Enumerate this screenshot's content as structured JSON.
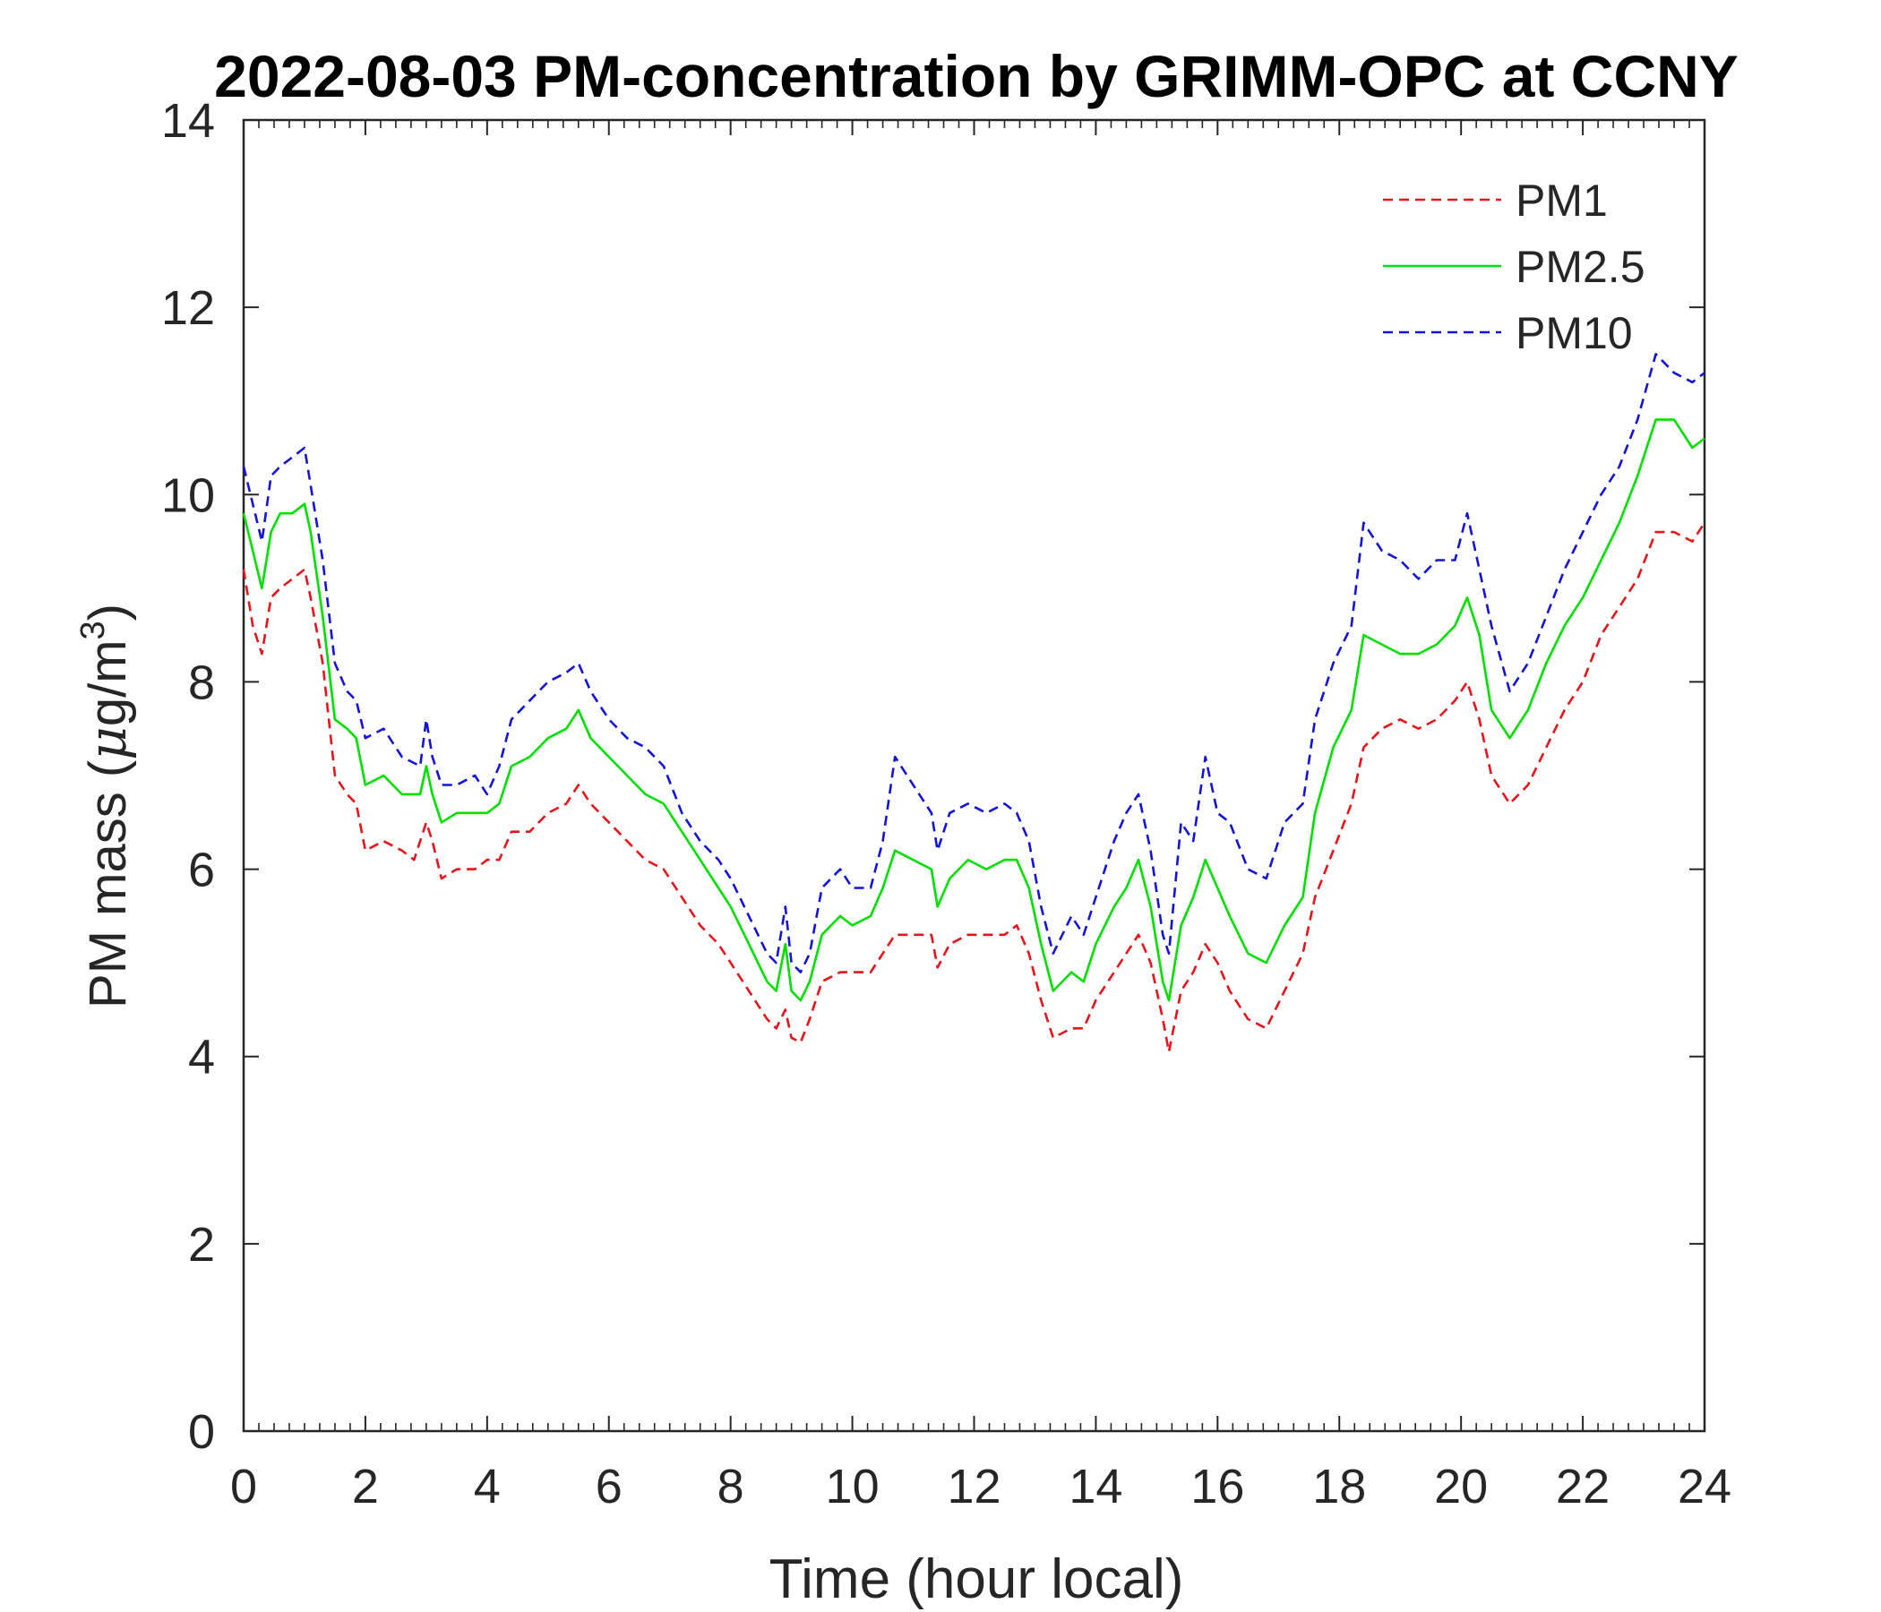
{
  "chart_data": {
    "type": "line",
    "title": "2022-08-03 PM-concentration by GRIMM-OPC at CCNY",
    "xlabel": "Time (hour local)",
    "ylabel_prefix": "PM mass (",
    "ylabel_mu": "μ",
    "ylabel_unit": "g/m",
    "ylabel_sup": "3",
    "ylabel_suffix": ")",
    "xlim": [
      0,
      24
    ],
    "ylim": [
      0,
      14
    ],
    "x_ticks": [
      "0",
      "2",
      "4",
      "6",
      "8",
      "10",
      "12",
      "14",
      "16",
      "18",
      "20",
      "22",
      "24"
    ],
    "y_ticks": [
      "0",
      "2",
      "4",
      "6",
      "8",
      "10",
      "12",
      "14"
    ],
    "legend_position": "top-right",
    "series": [
      {
        "name": "PM1",
        "color": "#e8141c",
        "style": "dashed",
        "points": [
          [
            0,
            9.2
          ],
          [
            0.15,
            8.6
          ],
          [
            0.3,
            8.3
          ],
          [
            0.45,
            8.9
          ],
          [
            0.6,
            9.0
          ],
          [
            0.8,
            9.1
          ],
          [
            1.0,
            9.2
          ],
          [
            1.1,
            8.9
          ],
          [
            1.3,
            8.2
          ],
          [
            1.5,
            7.0
          ],
          [
            1.7,
            6.8
          ],
          [
            1.85,
            6.7
          ],
          [
            2.0,
            6.2
          ],
          [
            2.3,
            6.3
          ],
          [
            2.6,
            6.2
          ],
          [
            2.8,
            6.1
          ],
          [
            3.0,
            6.5
          ],
          [
            3.1,
            6.3
          ],
          [
            3.25,
            5.9
          ],
          [
            3.5,
            6.0
          ],
          [
            3.8,
            6.0
          ],
          [
            4.0,
            6.1
          ],
          [
            4.2,
            6.1
          ],
          [
            4.4,
            6.4
          ],
          [
            4.7,
            6.4
          ],
          [
            5.0,
            6.6
          ],
          [
            5.3,
            6.7
          ],
          [
            5.5,
            6.9
          ],
          [
            5.7,
            6.7
          ],
          [
            6.0,
            6.5
          ],
          [
            6.3,
            6.3
          ],
          [
            6.6,
            6.1
          ],
          [
            6.9,
            6.0
          ],
          [
            7.2,
            5.7
          ],
          [
            7.5,
            5.4
          ],
          [
            7.8,
            5.2
          ],
          [
            8.0,
            5.0
          ],
          [
            8.3,
            4.7
          ],
          [
            8.6,
            4.4
          ],
          [
            8.75,
            4.3
          ],
          [
            8.9,
            4.5
          ],
          [
            9.0,
            4.2
          ],
          [
            9.15,
            4.15
          ],
          [
            9.3,
            4.4
          ],
          [
            9.5,
            4.8
          ],
          [
            9.8,
            4.9
          ],
          [
            10.0,
            4.9
          ],
          [
            10.3,
            4.9
          ],
          [
            10.5,
            5.1
          ],
          [
            10.7,
            5.3
          ],
          [
            11.0,
            5.3
          ],
          [
            11.3,
            5.3
          ],
          [
            11.4,
            4.95
          ],
          [
            11.6,
            5.2
          ],
          [
            11.9,
            5.3
          ],
          [
            12.2,
            5.3
          ],
          [
            12.5,
            5.3
          ],
          [
            12.7,
            5.4
          ],
          [
            12.9,
            5.1
          ],
          [
            13.1,
            4.6
          ],
          [
            13.3,
            4.2
          ],
          [
            13.6,
            4.3
          ],
          [
            13.8,
            4.3
          ],
          [
            14.0,
            4.6
          ],
          [
            14.3,
            4.9
          ],
          [
            14.5,
            5.1
          ],
          [
            14.7,
            5.3
          ],
          [
            14.9,
            5.0
          ],
          [
            15.1,
            4.4
          ],
          [
            15.2,
            4.05
          ],
          [
            15.4,
            4.7
          ],
          [
            15.6,
            4.9
          ],
          [
            15.8,
            5.2
          ],
          [
            16.0,
            5.0
          ],
          [
            16.2,
            4.7
          ],
          [
            16.5,
            4.4
          ],
          [
            16.8,
            4.3
          ],
          [
            17.1,
            4.7
          ],
          [
            17.4,
            5.1
          ],
          [
            17.6,
            5.7
          ],
          [
            17.9,
            6.2
          ],
          [
            18.2,
            6.7
          ],
          [
            18.4,
            7.3
          ],
          [
            18.7,
            7.5
          ],
          [
            19.0,
            7.6
          ],
          [
            19.3,
            7.5
          ],
          [
            19.6,
            7.6
          ],
          [
            19.9,
            7.8
          ],
          [
            20.1,
            8.0
          ],
          [
            20.3,
            7.6
          ],
          [
            20.5,
            7.0
          ],
          [
            20.8,
            6.7
          ],
          [
            21.1,
            6.9
          ],
          [
            21.4,
            7.3
          ],
          [
            21.7,
            7.7
          ],
          [
            22.0,
            8.0
          ],
          [
            22.3,
            8.5
          ],
          [
            22.6,
            8.8
          ],
          [
            22.9,
            9.1
          ],
          [
            23.2,
            9.6
          ],
          [
            23.5,
            9.6
          ],
          [
            23.8,
            9.5
          ],
          [
            24.0,
            9.7
          ]
        ]
      },
      {
        "name": "PM2.5",
        "color": "#00e000",
        "style": "solid",
        "points": [
          [
            0,
            9.8
          ],
          [
            0.15,
            9.4
          ],
          [
            0.3,
            9.0
          ],
          [
            0.45,
            9.6
          ],
          [
            0.6,
            9.8
          ],
          [
            0.8,
            9.8
          ],
          [
            1.0,
            9.9
          ],
          [
            1.1,
            9.6
          ],
          [
            1.3,
            8.7
          ],
          [
            1.5,
            7.6
          ],
          [
            1.7,
            7.5
          ],
          [
            1.85,
            7.4
          ],
          [
            2.0,
            6.9
          ],
          [
            2.3,
            7.0
          ],
          [
            2.6,
            6.8
          ],
          [
            2.9,
            6.8
          ],
          [
            3.0,
            7.1
          ],
          [
            3.1,
            6.8
          ],
          [
            3.25,
            6.5
          ],
          [
            3.5,
            6.6
          ],
          [
            3.8,
            6.6
          ],
          [
            4.0,
            6.6
          ],
          [
            4.2,
            6.7
          ],
          [
            4.4,
            7.1
          ],
          [
            4.7,
            7.2
          ],
          [
            5.0,
            7.4
          ],
          [
            5.3,
            7.5
          ],
          [
            5.5,
            7.7
          ],
          [
            5.7,
            7.4
          ],
          [
            6.0,
            7.2
          ],
          [
            6.3,
            7.0
          ],
          [
            6.6,
            6.8
          ],
          [
            6.9,
            6.7
          ],
          [
            7.2,
            6.4
          ],
          [
            7.5,
            6.1
          ],
          [
            7.8,
            5.8
          ],
          [
            8.0,
            5.6
          ],
          [
            8.3,
            5.2
          ],
          [
            8.6,
            4.8
          ],
          [
            8.75,
            4.7
          ],
          [
            8.9,
            5.2
          ],
          [
            9.0,
            4.7
          ],
          [
            9.15,
            4.6
          ],
          [
            9.3,
            4.8
          ],
          [
            9.5,
            5.3
          ],
          [
            9.8,
            5.5
          ],
          [
            10.0,
            5.4
          ],
          [
            10.3,
            5.5
          ],
          [
            10.5,
            5.8
          ],
          [
            10.7,
            6.2
          ],
          [
            11.0,
            6.1
          ],
          [
            11.3,
            6.0
          ],
          [
            11.4,
            5.6
          ],
          [
            11.6,
            5.9
          ],
          [
            11.9,
            6.1
          ],
          [
            12.2,
            6.0
          ],
          [
            12.5,
            6.1
          ],
          [
            12.7,
            6.1
          ],
          [
            12.9,
            5.8
          ],
          [
            13.1,
            5.2
          ],
          [
            13.3,
            4.7
          ],
          [
            13.6,
            4.9
          ],
          [
            13.8,
            4.8
          ],
          [
            14.0,
            5.2
          ],
          [
            14.3,
            5.6
          ],
          [
            14.5,
            5.8
          ],
          [
            14.7,
            6.1
          ],
          [
            14.9,
            5.6
          ],
          [
            15.1,
            4.8
          ],
          [
            15.2,
            4.6
          ],
          [
            15.4,
            5.4
          ],
          [
            15.6,
            5.7
          ],
          [
            15.8,
            6.1
          ],
          [
            16.0,
            5.8
          ],
          [
            16.2,
            5.5
          ],
          [
            16.5,
            5.1
          ],
          [
            16.8,
            5.0
          ],
          [
            17.1,
            5.4
          ],
          [
            17.4,
            5.7
          ],
          [
            17.6,
            6.6
          ],
          [
            17.9,
            7.3
          ],
          [
            18.2,
            7.7
          ],
          [
            18.4,
            8.5
          ],
          [
            18.7,
            8.4
          ],
          [
            19.0,
            8.3
          ],
          [
            19.3,
            8.3
          ],
          [
            19.6,
            8.4
          ],
          [
            19.9,
            8.6
          ],
          [
            20.1,
            8.9
          ],
          [
            20.3,
            8.5
          ],
          [
            20.5,
            7.7
          ],
          [
            20.8,
            7.4
          ],
          [
            21.1,
            7.7
          ],
          [
            21.4,
            8.2
          ],
          [
            21.7,
            8.6
          ],
          [
            22.0,
            8.9
          ],
          [
            22.3,
            9.3
          ],
          [
            22.6,
            9.7
          ],
          [
            22.9,
            10.2
          ],
          [
            23.2,
            10.8
          ],
          [
            23.5,
            10.8
          ],
          [
            23.8,
            10.5
          ],
          [
            24.0,
            10.6
          ]
        ]
      },
      {
        "name": "PM10",
        "color": "#1414d8",
        "style": "dashed",
        "points": [
          [
            0,
            10.3
          ],
          [
            0.15,
            9.9
          ],
          [
            0.3,
            9.5
          ],
          [
            0.45,
            10.2
          ],
          [
            0.6,
            10.3
          ],
          [
            0.8,
            10.4
          ],
          [
            1.0,
            10.5
          ],
          [
            1.1,
            10.1
          ],
          [
            1.3,
            9.3
          ],
          [
            1.5,
            8.2
          ],
          [
            1.7,
            7.9
          ],
          [
            1.85,
            7.8
          ],
          [
            2.0,
            7.4
          ],
          [
            2.3,
            7.5
          ],
          [
            2.6,
            7.2
          ],
          [
            2.9,
            7.1
          ],
          [
            3.0,
            7.6
          ],
          [
            3.1,
            7.2
          ],
          [
            3.25,
            6.9
          ],
          [
            3.5,
            6.9
          ],
          [
            3.8,
            7.0
          ],
          [
            4.0,
            6.8
          ],
          [
            4.2,
            7.1
          ],
          [
            4.4,
            7.6
          ],
          [
            4.7,
            7.8
          ],
          [
            5.0,
            8.0
          ],
          [
            5.3,
            8.1
          ],
          [
            5.5,
            8.2
          ],
          [
            5.7,
            7.9
          ],
          [
            6.0,
            7.6
          ],
          [
            6.3,
            7.4
          ],
          [
            6.6,
            7.3
          ],
          [
            6.9,
            7.1
          ],
          [
            7.2,
            6.6
          ],
          [
            7.5,
            6.3
          ],
          [
            7.8,
            6.1
          ],
          [
            8.0,
            5.9
          ],
          [
            8.3,
            5.5
          ],
          [
            8.6,
            5.1
          ],
          [
            8.75,
            5.0
          ],
          [
            8.9,
            5.6
          ],
          [
            9.0,
            5.0
          ],
          [
            9.15,
            4.9
          ],
          [
            9.3,
            5.1
          ],
          [
            9.5,
            5.8
          ],
          [
            9.8,
            6.0
          ],
          [
            10.0,
            5.8
          ],
          [
            10.3,
            5.8
          ],
          [
            10.5,
            6.3
          ],
          [
            10.7,
            7.2
          ],
          [
            11.0,
            6.9
          ],
          [
            11.3,
            6.6
          ],
          [
            11.4,
            6.2
          ],
          [
            11.6,
            6.6
          ],
          [
            11.9,
            6.7
          ],
          [
            12.2,
            6.6
          ],
          [
            12.5,
            6.7
          ],
          [
            12.7,
            6.6
          ],
          [
            12.9,
            6.3
          ],
          [
            13.1,
            5.6
          ],
          [
            13.3,
            5.1
          ],
          [
            13.6,
            5.5
          ],
          [
            13.8,
            5.3
          ],
          [
            14.0,
            5.7
          ],
          [
            14.3,
            6.3
          ],
          [
            14.5,
            6.6
          ],
          [
            14.7,
            6.8
          ],
          [
            14.9,
            6.2
          ],
          [
            15.1,
            5.3
          ],
          [
            15.2,
            5.1
          ],
          [
            15.4,
            6.5
          ],
          [
            15.6,
            6.3
          ],
          [
            15.8,
            7.2
          ],
          [
            16.0,
            6.6
          ],
          [
            16.2,
            6.5
          ],
          [
            16.5,
            6.0
          ],
          [
            16.8,
            5.9
          ],
          [
            17.1,
            6.5
          ],
          [
            17.4,
            6.7
          ],
          [
            17.6,
            7.6
          ],
          [
            17.9,
            8.2
          ],
          [
            18.2,
            8.6
          ],
          [
            18.4,
            9.7
          ],
          [
            18.7,
            9.4
          ],
          [
            19.0,
            9.3
          ],
          [
            19.3,
            9.1
          ],
          [
            19.6,
            9.3
          ],
          [
            19.9,
            9.3
          ],
          [
            20.1,
            9.8
          ],
          [
            20.3,
            9.2
          ],
          [
            20.5,
            8.6
          ],
          [
            20.8,
            7.9
          ],
          [
            21.1,
            8.2
          ],
          [
            21.4,
            8.7
          ],
          [
            21.7,
            9.2
          ],
          [
            22.0,
            9.6
          ],
          [
            22.3,
            10.0
          ],
          [
            22.6,
            10.3
          ],
          [
            22.9,
            10.8
          ],
          [
            23.2,
            11.5
          ],
          [
            23.5,
            11.3
          ],
          [
            23.8,
            11.2
          ],
          [
            24.0,
            11.3
          ]
        ]
      }
    ]
  }
}
